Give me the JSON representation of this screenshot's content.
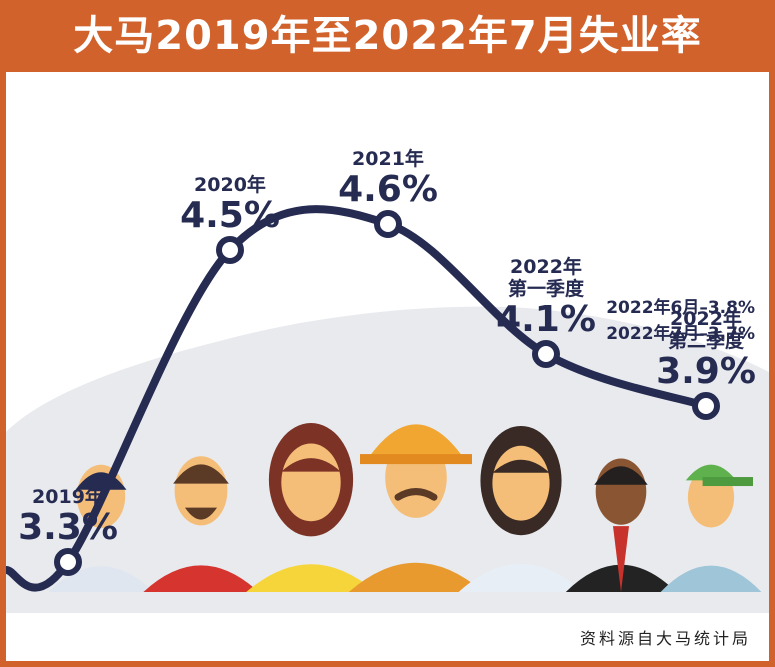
{
  "title": "大马2019年至2022年7月失业率",
  "source": "资料源自大马统计局",
  "chart_data": {
    "type": "line",
    "title": "大马2019年至2022年7月失业率",
    "xlabel": "",
    "ylabel": "",
    "categories": [
      "2019年",
      "2020年",
      "2021年",
      "2022年\n第一季度",
      "2022年\n第二季度"
    ],
    "values": [
      3.3,
      4.5,
      4.6,
      4.1,
      3.9
    ],
    "value_labels": [
      "3.3%",
      "4.5%",
      "4.6%",
      "4.1%",
      "3.9%"
    ],
    "ylim": [
      3.0,
      5.0
    ],
    "grid": false,
    "legend": "none",
    "line_color": "#262b52",
    "annotations": [
      "2022年6月–3.8%",
      "2022年7月–3.7%"
    ]
  },
  "colors": {
    "header": "#d2622b",
    "line": "#262b52",
    "crowd_bg": "#e8eaee"
  },
  "illustration": {
    "subject": "crowd of people of various occupations"
  }
}
